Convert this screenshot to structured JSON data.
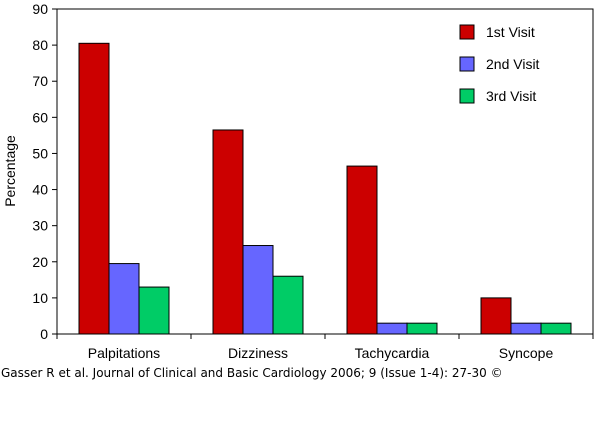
{
  "chart_data": {
    "type": "bar",
    "title": "",
    "xlabel": "",
    "ylabel": "Percentage",
    "ylim": [
      0,
      90
    ],
    "yticks": [
      0,
      10,
      20,
      30,
      40,
      50,
      60,
      70,
      80,
      90
    ],
    "categories": [
      "Palpitations",
      "Dizziness",
      "Tachycardia",
      "Syncope"
    ],
    "series": [
      {
        "name": "1st Visit",
        "color": "#cc0000",
        "values": [
          80.5,
          56.5,
          46.5,
          10
        ]
      },
      {
        "name": "2nd Visit",
        "color": "#6666ff",
        "values": [
          19.5,
          24.5,
          3,
          3
        ]
      },
      {
        "name": "3rd Visit",
        "color": "#00cc66",
        "values": [
          13,
          16,
          3,
          3
        ]
      }
    ],
    "legend_position": "top-right",
    "grid": false
  },
  "citation": "Gasser R et al. Journal of Clinical and Basic Cardiology 2006; 9 (Issue 1-4): 27-30 ©"
}
